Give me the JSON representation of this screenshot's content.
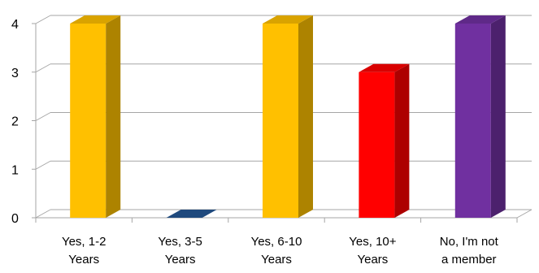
{
  "chart_data": {
    "type": "bar",
    "style": "3d-column",
    "categories": [
      [
        "Yes, 1-2",
        "Years"
      ],
      [
        "Yes, 3-5",
        "Years"
      ],
      [
        "Yes, 6-10",
        "Years"
      ],
      [
        "Yes, 10+",
        "Years"
      ],
      [
        "No, I'm not",
        "a member"
      ]
    ],
    "values": [
      4,
      0,
      4,
      3,
      4
    ],
    "colors": [
      "#FFC000",
      "#1F497D",
      "#FFC000",
      "#FF0000",
      "#7030A0"
    ],
    "yticks": [
      0,
      1,
      2,
      3,
      4
    ],
    "ylim": [
      0,
      4
    ],
    "grid": true,
    "legend": "none",
    "title": "",
    "xlabel": "",
    "ylabel": ""
  }
}
